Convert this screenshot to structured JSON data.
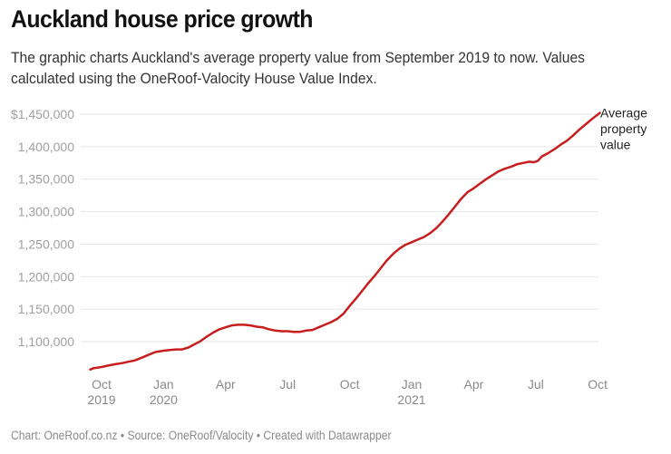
{
  "title": "Auckland house price growth",
  "subtitle": "The graphic charts Auckland's average property value from September 2019 to now. Values calculated using the OneRoof-Valocity House Value Index.",
  "footer": "Chart: OneRoof.co.nz • Source: OneRoof/Valocity • Created with Datawrapper",
  "chart_data": {
    "type": "line",
    "title": "Auckland house price growth",
    "xlabel": "",
    "ylabel": "",
    "ylim": [
      1050000,
      1450000
    ],
    "grid": true,
    "legend": "direct-label right of line end",
    "y_ticks": [
      {
        "value": 1450000,
        "label": "$1,450,000"
      },
      {
        "value": 1400000,
        "label": "1,400,000"
      },
      {
        "value": 1350000,
        "label": "1,350,000"
      },
      {
        "value": 1300000,
        "label": "1,300,000"
      },
      {
        "value": 1250000,
        "label": "1,250,000"
      },
      {
        "value": 1200000,
        "label": "1,200,000"
      },
      {
        "value": 1150000,
        "label": "1,150,000"
      },
      {
        "value": 1100000,
        "label": "1,100,000"
      }
    ],
    "x_ticks": [
      {
        "month": 1,
        "line1": "Oct",
        "line2": "2019"
      },
      {
        "month": 4,
        "line1": "Jan",
        "line2": "2020"
      },
      {
        "month": 7,
        "line1": "Apr",
        "line2": ""
      },
      {
        "month": 10,
        "line1": "Jul",
        "line2": ""
      },
      {
        "month": 13,
        "line1": "Oct",
        "line2": ""
      },
      {
        "month": 16,
        "line1": "Jan",
        "line2": "2021"
      },
      {
        "month": 19,
        "line1": "Apr",
        "line2": ""
      },
      {
        "month": 22,
        "line1": "Jul",
        "line2": ""
      },
      {
        "month": 25,
        "line1": "Oct",
        "line2": ""
      }
    ],
    "x_unit": "months since Sep 2019",
    "series": [
      {
        "name": "Average property value",
        "color": "#c71e1d",
        "points": [
          [
            0.45,
            1057000
          ],
          [
            0.6,
            1059000
          ],
          [
            0.8,
            1060000
          ],
          [
            1.0,
            1061000
          ],
          [
            1.3,
            1063000
          ],
          [
            1.6,
            1065000
          ],
          [
            2.0,
            1067000
          ],
          [
            2.3,
            1069000
          ],
          [
            2.6,
            1071000
          ],
          [
            3.0,
            1076000
          ],
          [
            3.3,
            1080000
          ],
          [
            3.6,
            1084000
          ],
          [
            4.0,
            1086000
          ],
          [
            4.3,
            1087000
          ],
          [
            4.6,
            1088000
          ],
          [
            4.9,
            1088000
          ],
          [
            5.2,
            1091000
          ],
          [
            5.5,
            1096000
          ],
          [
            5.8,
            1101000
          ],
          [
            6.1,
            1108000
          ],
          [
            6.4,
            1114000
          ],
          [
            6.7,
            1119000
          ],
          [
            7.0,
            1122000
          ],
          [
            7.3,
            1125000
          ],
          [
            7.6,
            1126000
          ],
          [
            7.9,
            1126000
          ],
          [
            8.2,
            1125000
          ],
          [
            8.5,
            1123000
          ],
          [
            8.8,
            1122000
          ],
          [
            9.1,
            1119000
          ],
          [
            9.4,
            1117000
          ],
          [
            9.7,
            1116000
          ],
          [
            10.0,
            1116000
          ],
          [
            10.3,
            1115000
          ],
          [
            10.6,
            1115000
          ],
          [
            10.9,
            1117000
          ],
          [
            11.2,
            1118000
          ],
          [
            11.5,
            1122000
          ],
          [
            11.8,
            1126000
          ],
          [
            12.1,
            1130000
          ],
          [
            12.4,
            1135000
          ],
          [
            12.7,
            1143000
          ],
          [
            13.0,
            1155000
          ],
          [
            13.3,
            1166000
          ],
          [
            13.6,
            1178000
          ],
          [
            13.9,
            1190000
          ],
          [
            14.2,
            1201000
          ],
          [
            14.5,
            1213000
          ],
          [
            14.8,
            1225000
          ],
          [
            15.1,
            1235000
          ],
          [
            15.4,
            1243000
          ],
          [
            15.7,
            1249000
          ],
          [
            16.0,
            1253000
          ],
          [
            16.3,
            1257000
          ],
          [
            16.6,
            1261000
          ],
          [
            16.9,
            1267000
          ],
          [
            17.2,
            1275000
          ],
          [
            17.5,
            1285000
          ],
          [
            17.8,
            1296000
          ],
          [
            18.1,
            1308000
          ],
          [
            18.4,
            1320000
          ],
          [
            18.7,
            1330000
          ],
          [
            19.0,
            1336000
          ],
          [
            19.3,
            1343000
          ],
          [
            19.6,
            1350000
          ],
          [
            19.9,
            1356000
          ],
          [
            20.2,
            1362000
          ],
          [
            20.5,
            1366000
          ],
          [
            20.8,
            1369000
          ],
          [
            21.1,
            1373000
          ],
          [
            21.4,
            1375000
          ],
          [
            21.7,
            1377000
          ],
          [
            21.9,
            1376000
          ],
          [
            22.1,
            1378000
          ],
          [
            22.3,
            1385000
          ],
          [
            22.6,
            1390000
          ],
          [
            22.9,
            1396000
          ],
          [
            23.2,
            1403000
          ],
          [
            23.5,
            1409000
          ],
          [
            23.8,
            1417000
          ],
          [
            24.1,
            1426000
          ],
          [
            24.4,
            1434000
          ],
          [
            24.7,
            1442000
          ],
          [
            24.9,
            1447000
          ],
          [
            25.1,
            1452000
          ]
        ]
      }
    ]
  }
}
